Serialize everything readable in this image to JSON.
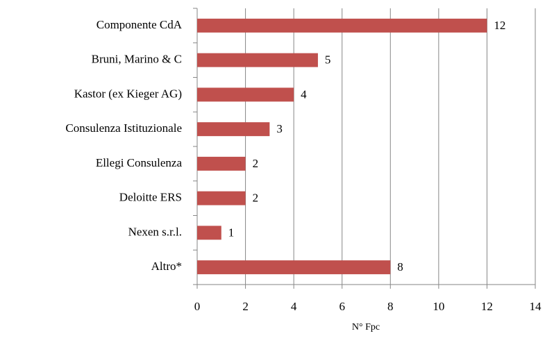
{
  "chart_data": {
    "type": "bar",
    "orientation": "horizontal",
    "categories": [
      "Componente CdA",
      "Bruni, Marino & C",
      "Kastor (ex Kieger AG)",
      "Consulenza Istituzionale",
      "Ellegi Consulenza",
      "Deloitte ERS",
      "Nexen s.r.l.",
      "Altro*"
    ],
    "values": [
      12,
      5,
      4,
      3,
      2,
      2,
      1,
      8
    ],
    "color": "#c0504d",
    "xlabel": "N° Fpc",
    "xlim": [
      0,
      14
    ],
    "xticks": [
      0,
      2,
      4,
      6,
      8,
      10,
      12,
      14
    ],
    "grid": true
  }
}
